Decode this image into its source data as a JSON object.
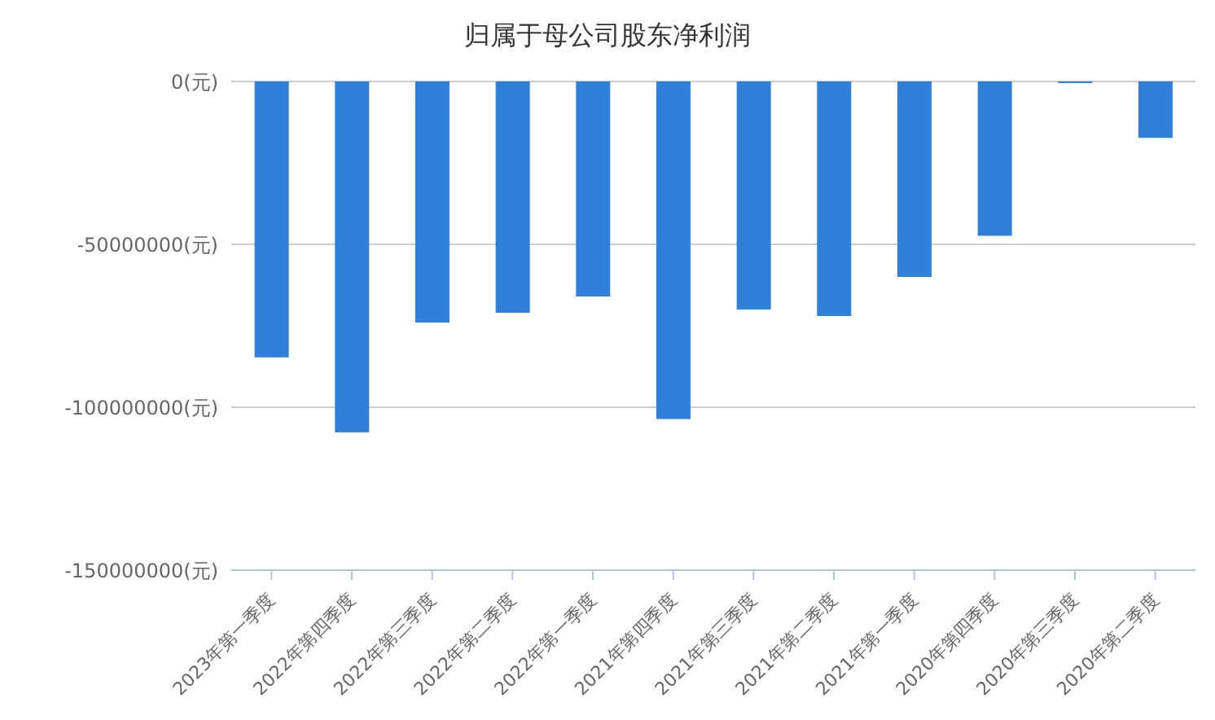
{
  "chart_data": {
    "type": "bar",
    "title": "归属于母公司股东净利润",
    "categories": [
      "2023年第一季度",
      "2022年第四季度",
      "2022年第三季度",
      "2022年第二季度",
      "2022年第一季度",
      "2021年第四季度",
      "2021年第三季度",
      "2021年第二季度",
      "2021年第一季度",
      "2020年第四季度",
      "2020年第三季度",
      "2020年第二季度"
    ],
    "values": [
      -84700000,
      -107700000,
      -74000000,
      -71000000,
      -66000000,
      -103600000,
      -70000000,
      -72000000,
      -60000000,
      -47400000,
      -500000,
      -17300000
    ],
    "color": "#2f80d8",
    "ylim": [
      -150000000,
      0
    ],
    "yticks": [
      {
        "value": 0,
        "label": "0(元)"
      },
      {
        "value": -50000000,
        "label": "-50000000(元)"
      },
      {
        "value": -100000000,
        "label": "-100000000(元)"
      },
      {
        "value": -150000000,
        "label": "-150000000(元)"
      }
    ],
    "grid": "y",
    "legend": false
  }
}
